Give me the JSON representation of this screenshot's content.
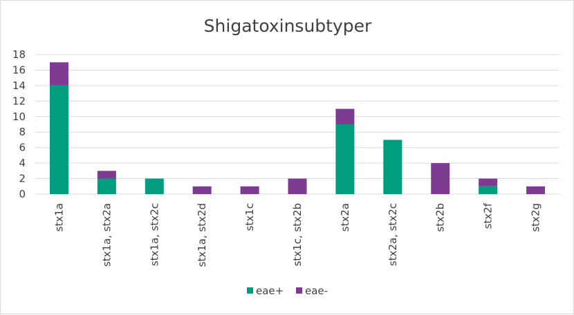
{
  "chart_data": {
    "type": "bar",
    "stacked": true,
    "title": "Shigatoxinsubtyper",
    "categories": [
      "stx1a",
      "stx1a, stx2a",
      "stx1a, stx2c",
      "stx1a, stx2d",
      "stx1c",
      "stx1c, stx2b",
      "stx2a",
      "stx2a, stx2c",
      "stx2b",
      "stx2f",
      "stx2g"
    ],
    "series": [
      {
        "name": "eae+",
        "color": "#009E7F",
        "values": [
          14,
          2,
          2,
          0,
          0,
          0,
          9,
          7,
          0,
          1,
          0
        ]
      },
      {
        "name": "eae-",
        "color": "#7F3A91",
        "values": [
          3,
          1,
          0,
          1,
          1,
          2,
          2,
          0,
          4,
          1,
          1
        ]
      }
    ],
    "ylim": [
      0,
      18
    ],
    "yticks": [
      0,
      2,
      4,
      6,
      8,
      10,
      12,
      14,
      16,
      18
    ],
    "grid": true,
    "legend_position": "bottom"
  }
}
